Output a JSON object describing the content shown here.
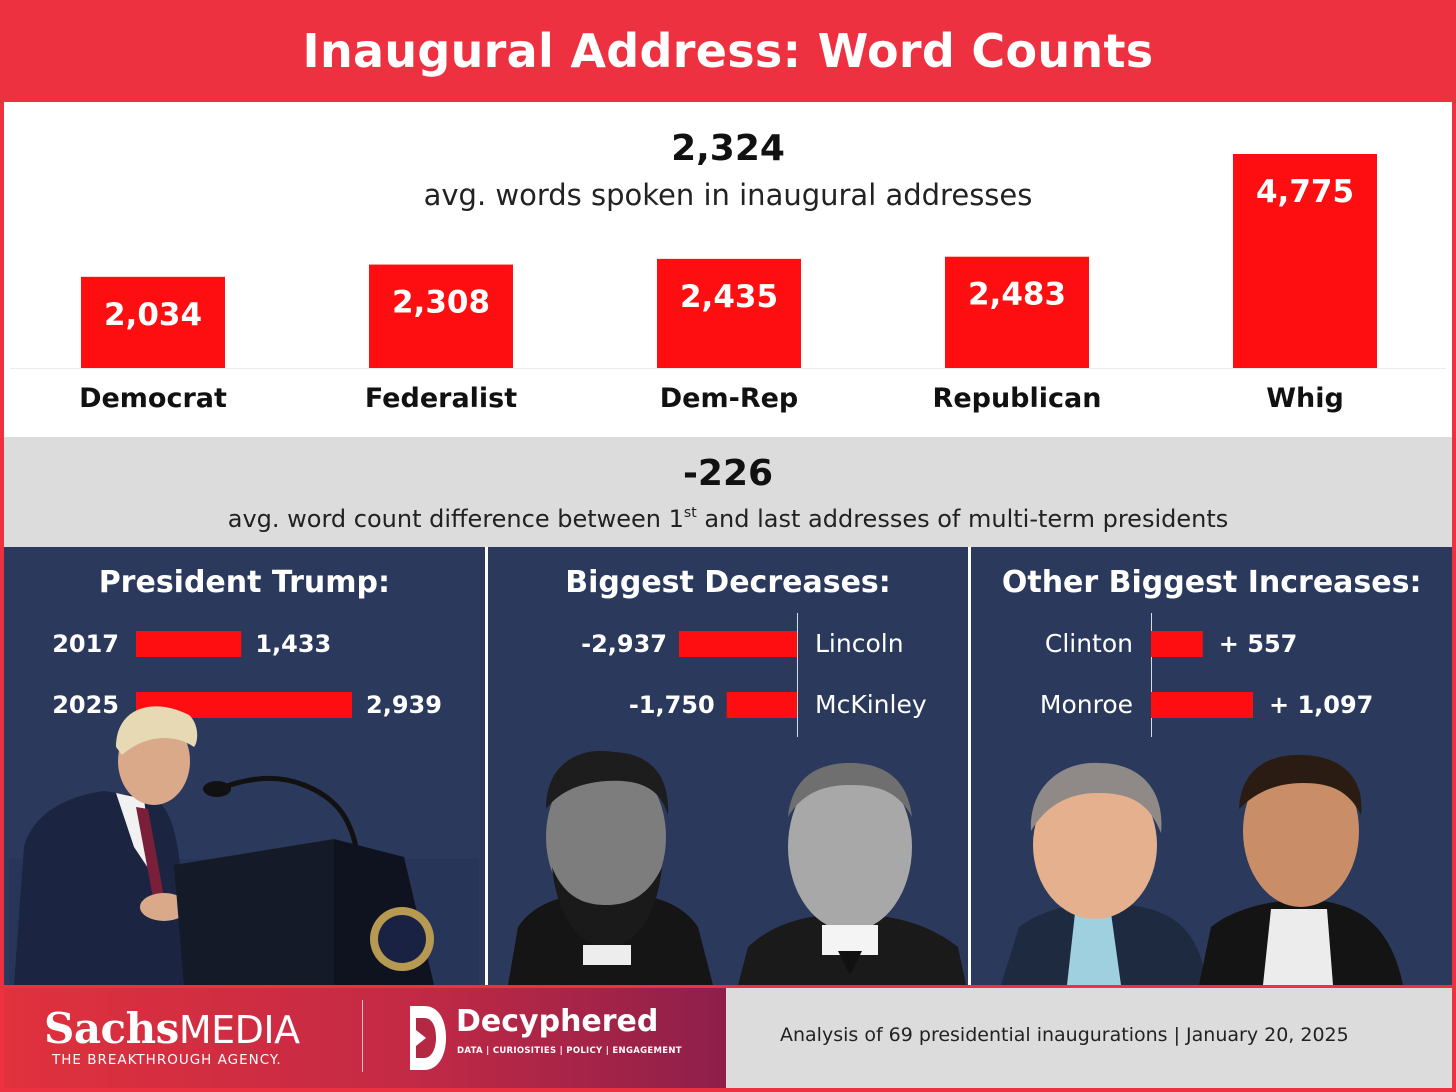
{
  "title": "Inaugural Address: Word Counts",
  "avg_stat": {
    "value": "2,324",
    "caption": "avg. words spoken in inaugural addresses"
  },
  "diff_stat": {
    "value": "-226",
    "caption_before": "avg. word count difference between 1",
    "caption_sup": "st",
    "caption_after": " and last addresses of multi-term presidents"
  },
  "colors": {
    "header": "#ee3140",
    "bar": "#fe0e10",
    "panel": "#2b3a5c",
    "mid_band": "#dcdcdc"
  },
  "chart_data": [
    {
      "type": "bar",
      "categories": [
        "Democrat",
        "Federalist",
        "Dem-Rep",
        "Republican",
        "Whig"
      ],
      "values": [
        2034,
        2308,
        2435,
        2483,
        4775
      ],
      "value_labels": [
        "2,034",
        "2,308",
        "2,435",
        "2,483",
        "4,775"
      ]
    },
    {
      "type": "bar",
      "title": "President Trump:",
      "orientation": "horizontal",
      "categories": [
        "2017",
        "2025"
      ],
      "values": [
        1433,
        2939
      ],
      "value_labels": [
        "1,433",
        "2,939"
      ]
    },
    {
      "type": "bar",
      "title": "Biggest Decreases:",
      "orientation": "horizontal",
      "categories": [
        "Lincoln",
        "McKinley"
      ],
      "values": [
        -2937,
        -1750
      ],
      "value_labels": [
        "-2,937",
        "-1,750"
      ]
    },
    {
      "type": "bar",
      "title": "Other Biggest Increases:",
      "orientation": "horizontal",
      "categories": [
        "Clinton",
        "Monroe"
      ],
      "values": [
        557,
        1097
      ],
      "value_labels": [
        "+ 557",
        "+ 1,097"
      ]
    }
  ],
  "footer": {
    "brand_sachs": "Sachs",
    "brand_media": "MEDIA",
    "brand_tagline": "THE BREAKTHROUGH AGENCY.",
    "brand_decyphered": "Decyphered",
    "brand_decyphered_sub": "DATA | CURIOSITIES | POLICY | ENGAGEMENT",
    "note": "Analysis of 69 presidential inaugurations | January 20, 2025"
  }
}
